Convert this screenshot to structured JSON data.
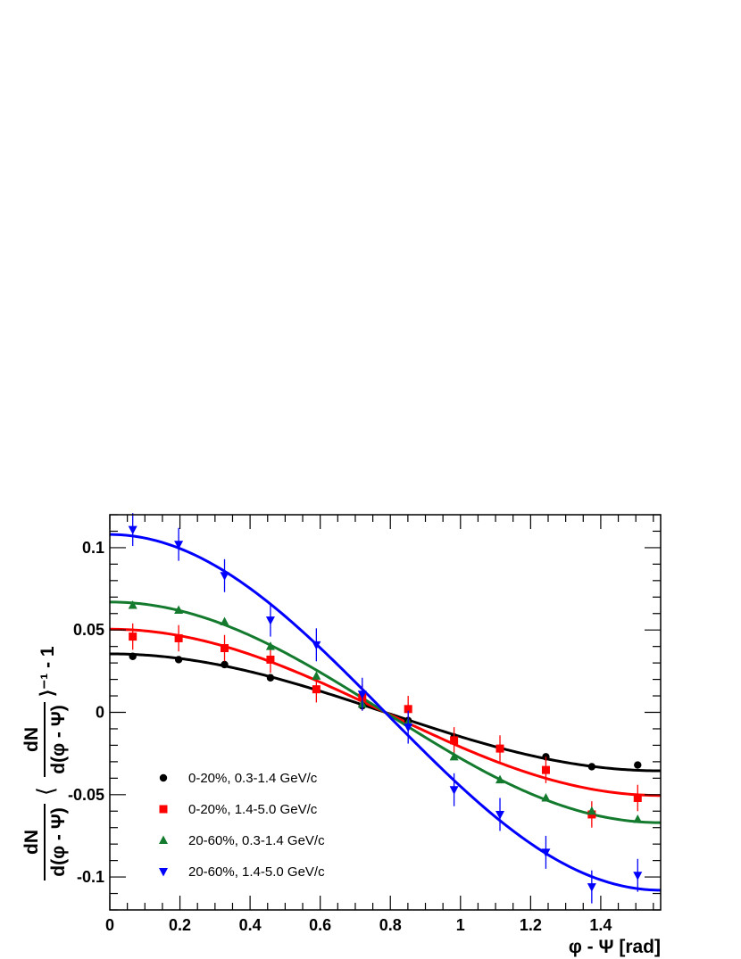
{
  "chart_data": {
    "type": "scatter",
    "title": "",
    "xlabel": "φ - Ψ [rad]",
    "ylabel_parts": {
      "num": "dN",
      "den": "d(φ - Ψ)",
      "bracket_num": "dN",
      "bracket_den": "d(φ - Ψ)",
      "suffix": "⟩⁻¹ - 1",
      "open": "⟨"
    },
    "xlim": [
      0,
      1.5708
    ],
    "ylim": [
      -0.12,
      0.12
    ],
    "x_ticks": [
      "0",
      "0.2",
      "0.4",
      "0.6",
      "0.8",
      "1",
      "1.2",
      "1.4"
    ],
    "x_tick_values": [
      0,
      0.2,
      0.4,
      0.6,
      0.8,
      1.0,
      1.2,
      1.4
    ],
    "y_ticks": [
      "-0.1",
      "-0.05",
      "0",
      "0.05",
      "0.1"
    ],
    "y_tick_values": [
      -0.1,
      -0.05,
      0,
      0.05,
      0.1
    ],
    "legend_position": "bottom-left",
    "x": [
      0.0654,
      0.1963,
      0.3272,
      0.4581,
      0.589,
      0.7199,
      0.8508,
      0.9817,
      1.1126,
      1.2435,
      1.3744,
      1.5053
    ],
    "series": [
      {
        "name": "0-20%, 0.3-1.4 GeV/c",
        "marker": "circle",
        "color": "#000000",
        "fit_amplitude": 0.0355,
        "values": [
          0.034,
          0.032,
          0.029,
          0.021,
          0.014,
          0.004,
          -0.005,
          -0.015,
          -0.022,
          -0.027,
          -0.033,
          -0.032
        ],
        "errors": [
          0.002,
          0.002,
          0.002,
          0.002,
          0.002,
          0.002,
          0.002,
          0.002,
          0.002,
          0.002,
          0.002,
          0.002
        ]
      },
      {
        "name": "0-20%, 1.4-5.0 GeV/c",
        "marker": "square",
        "color": "#ff0000",
        "fit_amplitude": 0.0505,
        "values": [
          0.046,
          0.045,
          0.039,
          0.032,
          0.014,
          0.009,
          0.002,
          -0.017,
          -0.022,
          -0.035,
          -0.062,
          -0.052
        ],
        "errors": [
          0.008,
          0.008,
          0.008,
          0.008,
          0.008,
          0.008,
          0.008,
          0.008,
          0.008,
          0.008,
          0.008,
          0.008
        ]
      },
      {
        "name": "20-60%, 0.3-1.4 GeV/c",
        "marker": "triangle-up",
        "color": "#137a2e",
        "fit_amplitude": 0.067,
        "values": [
          0.065,
          0.062,
          0.055,
          0.04,
          0.022,
          0.005,
          -0.006,
          -0.027,
          -0.041,
          -0.052,
          -0.06,
          -0.065
        ],
        "errors": [
          0.002,
          0.002,
          0.002,
          0.002,
          0.002,
          0.002,
          0.002,
          0.002,
          0.002,
          0.002,
          0.002,
          0.002
        ]
      },
      {
        "name": "20-60%, 1.4-5.0 GeV/c",
        "marker": "triangle-down",
        "color": "#0000ff",
        "fit_amplitude": 0.108,
        "values": [
          0.111,
          0.102,
          0.083,
          0.056,
          0.041,
          0.011,
          -0.009,
          -0.047,
          -0.062,
          -0.085,
          -0.106,
          -0.099
        ],
        "errors": [
          0.01,
          0.01,
          0.01,
          0.01,
          0.01,
          0.01,
          0.01,
          0.01,
          0.01,
          0.01,
          0.01,
          0.01
        ]
      }
    ]
  }
}
